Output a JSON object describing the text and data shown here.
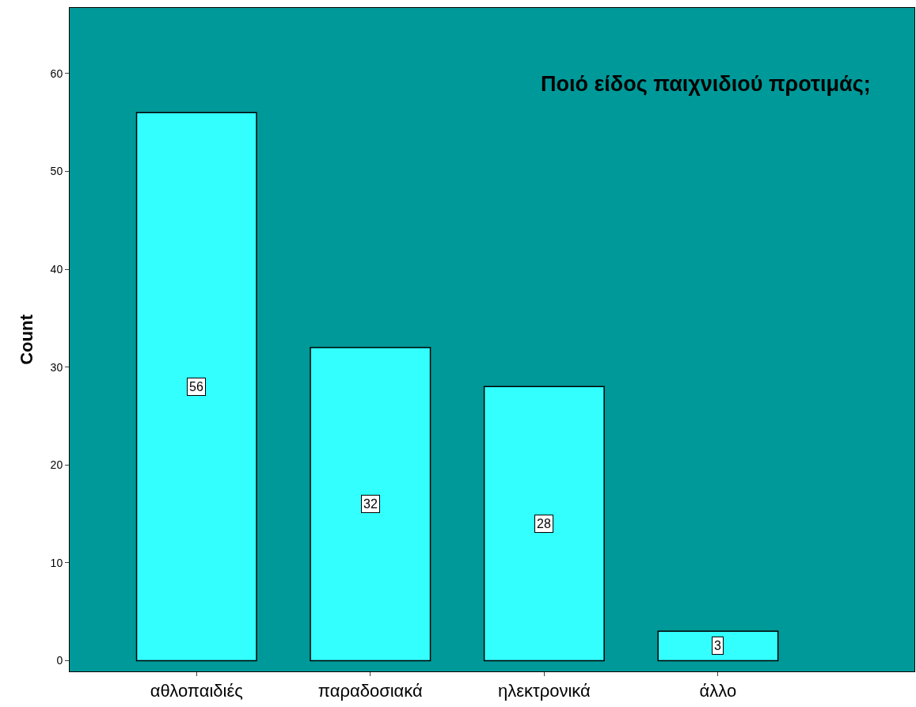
{
  "chart_data": {
    "type": "bar",
    "title": "Ποιό είδος παιχνιδιού προτιμάς;",
    "ylabel": "Count",
    "categories": [
      "αθλοπαιδιές",
      "παραδοσιακά",
      "ηλεκτρονικά",
      "άλλο"
    ],
    "values": [
      56,
      32,
      28,
      3
    ],
    "color": "#33ffff",
    "ylim": [
      -1.1,
      66.7
    ],
    "yticks": [
      0,
      10,
      20,
      30,
      40,
      50,
      60
    ],
    "data_labels": true,
    "grid": false,
    "legend": false
  }
}
